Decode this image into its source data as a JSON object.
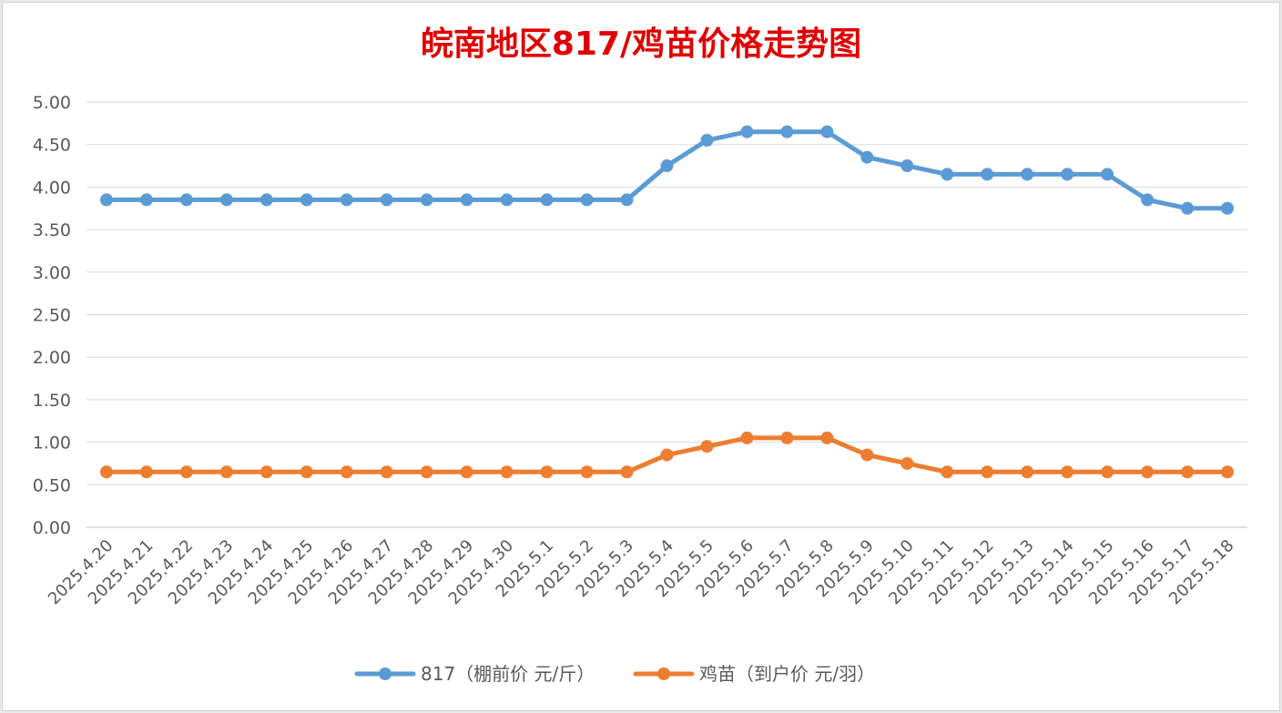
{
  "chart_data": {
    "type": "line",
    "title": "皖南地区817/鸡苗价格走势图",
    "title_color": "#e00000",
    "categories": [
      "2025.4.20",
      "2025.4.21",
      "2025.4.22",
      "2025.4.23",
      "2025.4.24",
      "2025.4.25",
      "2025.4.26",
      "2025.4.27",
      "2025.4.28",
      "2025.4.29",
      "2025.4.30",
      "2025.5.1",
      "2025.5.2",
      "2025.5.3",
      "2025.5.4",
      "2025.5.5",
      "2025.5.6",
      "2025.5.7",
      "2025.5.8",
      "2025.5.9",
      "2025.5.10",
      "2025.5.11",
      "2025.5.12",
      "2025.5.13",
      "2025.5.14",
      "2025.5.15",
      "2025.5.16",
      "2025.5.17",
      "2025.5.18"
    ],
    "series": [
      {
        "name": "817（棚前价 元/斤）",
        "color": "#5b9bd5",
        "values": [
          3.85,
          3.85,
          3.85,
          3.85,
          3.85,
          3.85,
          3.85,
          3.85,
          3.85,
          3.85,
          3.85,
          3.85,
          3.85,
          3.85,
          4.25,
          4.55,
          4.65,
          4.65,
          4.65,
          4.35,
          4.25,
          4.15,
          4.15,
          4.15,
          4.15,
          4.15,
          3.85,
          3.75,
          3.75
        ]
      },
      {
        "name": "鸡苗（到户价 元/羽）",
        "color": "#ed7d31",
        "values": [
          0.65,
          0.65,
          0.65,
          0.65,
          0.65,
          0.65,
          0.65,
          0.65,
          0.65,
          0.65,
          0.65,
          0.65,
          0.65,
          0.65,
          0.85,
          0.95,
          1.05,
          1.05,
          1.05,
          0.85,
          0.75,
          0.65,
          0.65,
          0.65,
          0.65,
          0.65,
          0.65,
          0.65,
          0.65
        ]
      }
    ],
    "y_ticks": [
      "0.00",
      "0.50",
      "1.00",
      "1.50",
      "2.00",
      "2.50",
      "3.00",
      "3.50",
      "4.00",
      "4.50",
      "5.00"
    ],
    "ylim": [
      0,
      5
    ],
    "grid": true,
    "legend_position": "bottom"
  }
}
